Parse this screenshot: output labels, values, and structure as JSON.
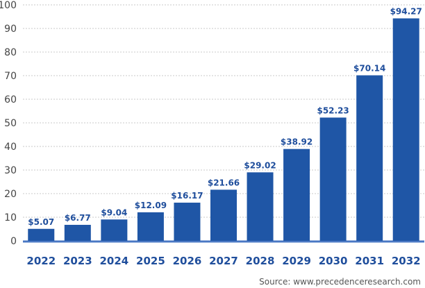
{
  "chart_data": {
    "type": "bar",
    "title": "",
    "xlabel": "",
    "ylabel": "",
    "categories": [
      "2022",
      "2023",
      "2024",
      "2025",
      "2026",
      "2027",
      "2028",
      "2029",
      "2030",
      "2031",
      "2032"
    ],
    "values": [
      5.07,
      6.77,
      9.04,
      12.09,
      16.17,
      21.66,
      29.02,
      38.92,
      52.23,
      70.14,
      94.27
    ],
    "data_labels": [
      "$5.07",
      "$6.77",
      "$9.04",
      "$12.09",
      "$16.17",
      "$21.66",
      "$29.02",
      "$38.92",
      "$52.23",
      "$70.14",
      "$94.27"
    ],
    "ylim": [
      0,
      100
    ],
    "yticks": [
      "0",
      "10",
      "20",
      "30",
      "40",
      "50",
      "60",
      "70",
      "80",
      "90",
      "100"
    ],
    "grid": true,
    "legend": "none",
    "colors": {
      "bar": "#1f56a6",
      "label": "#1f4e9c",
      "grid": "#c8c8c8",
      "baseline": "#4a78c4"
    }
  },
  "source": "Source: www.precedenceresearch.com"
}
